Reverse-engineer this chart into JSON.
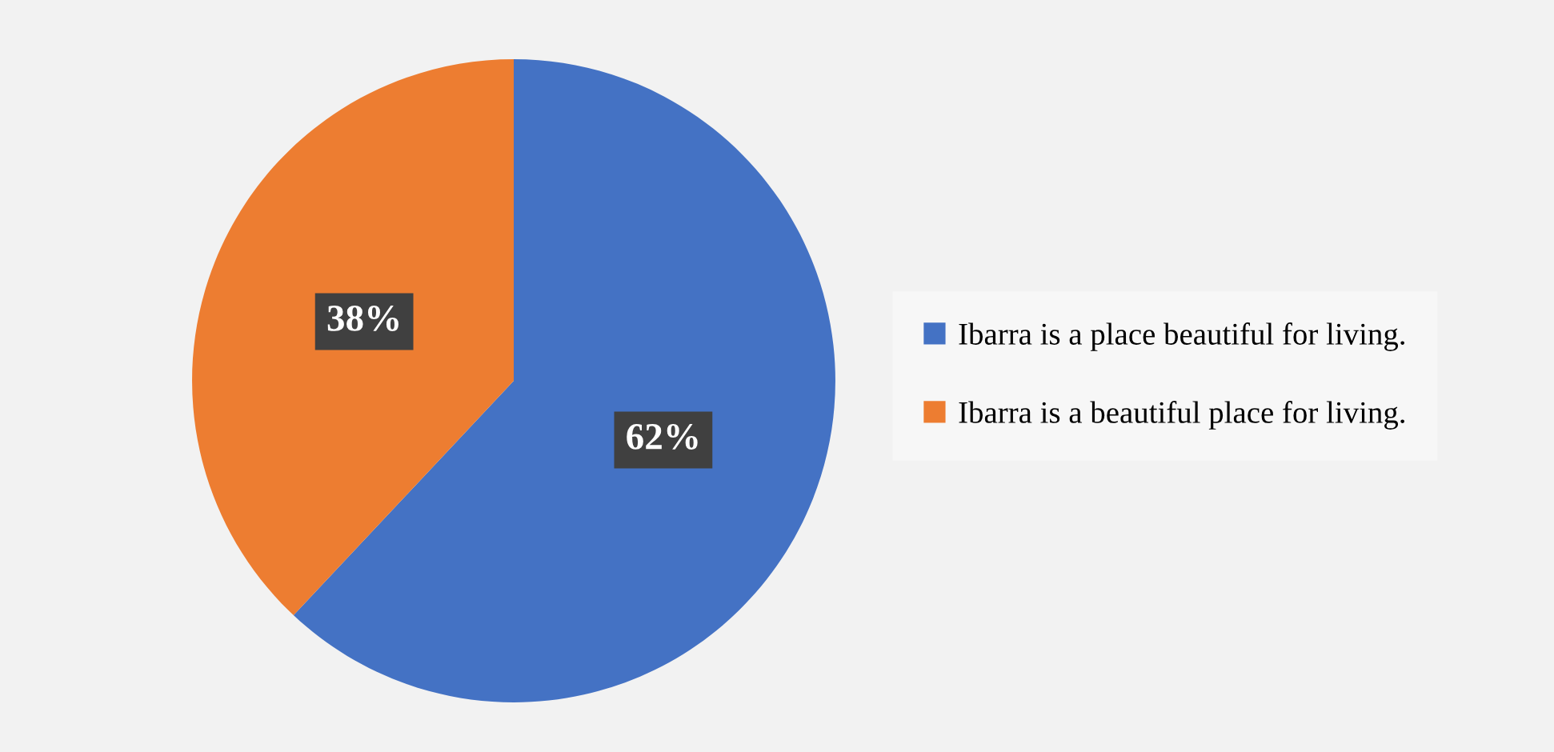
{
  "chart_data": {
    "type": "pie",
    "categories": [
      "Ibarra is a place beautiful for living.",
      "Ibarra is a beautiful place for living."
    ],
    "values": [
      62,
      38
    ],
    "colors": [
      "#4472c4",
      "#ed7d31"
    ],
    "value_labels": [
      "62%",
      "38%"
    ],
    "legend": "right"
  }
}
